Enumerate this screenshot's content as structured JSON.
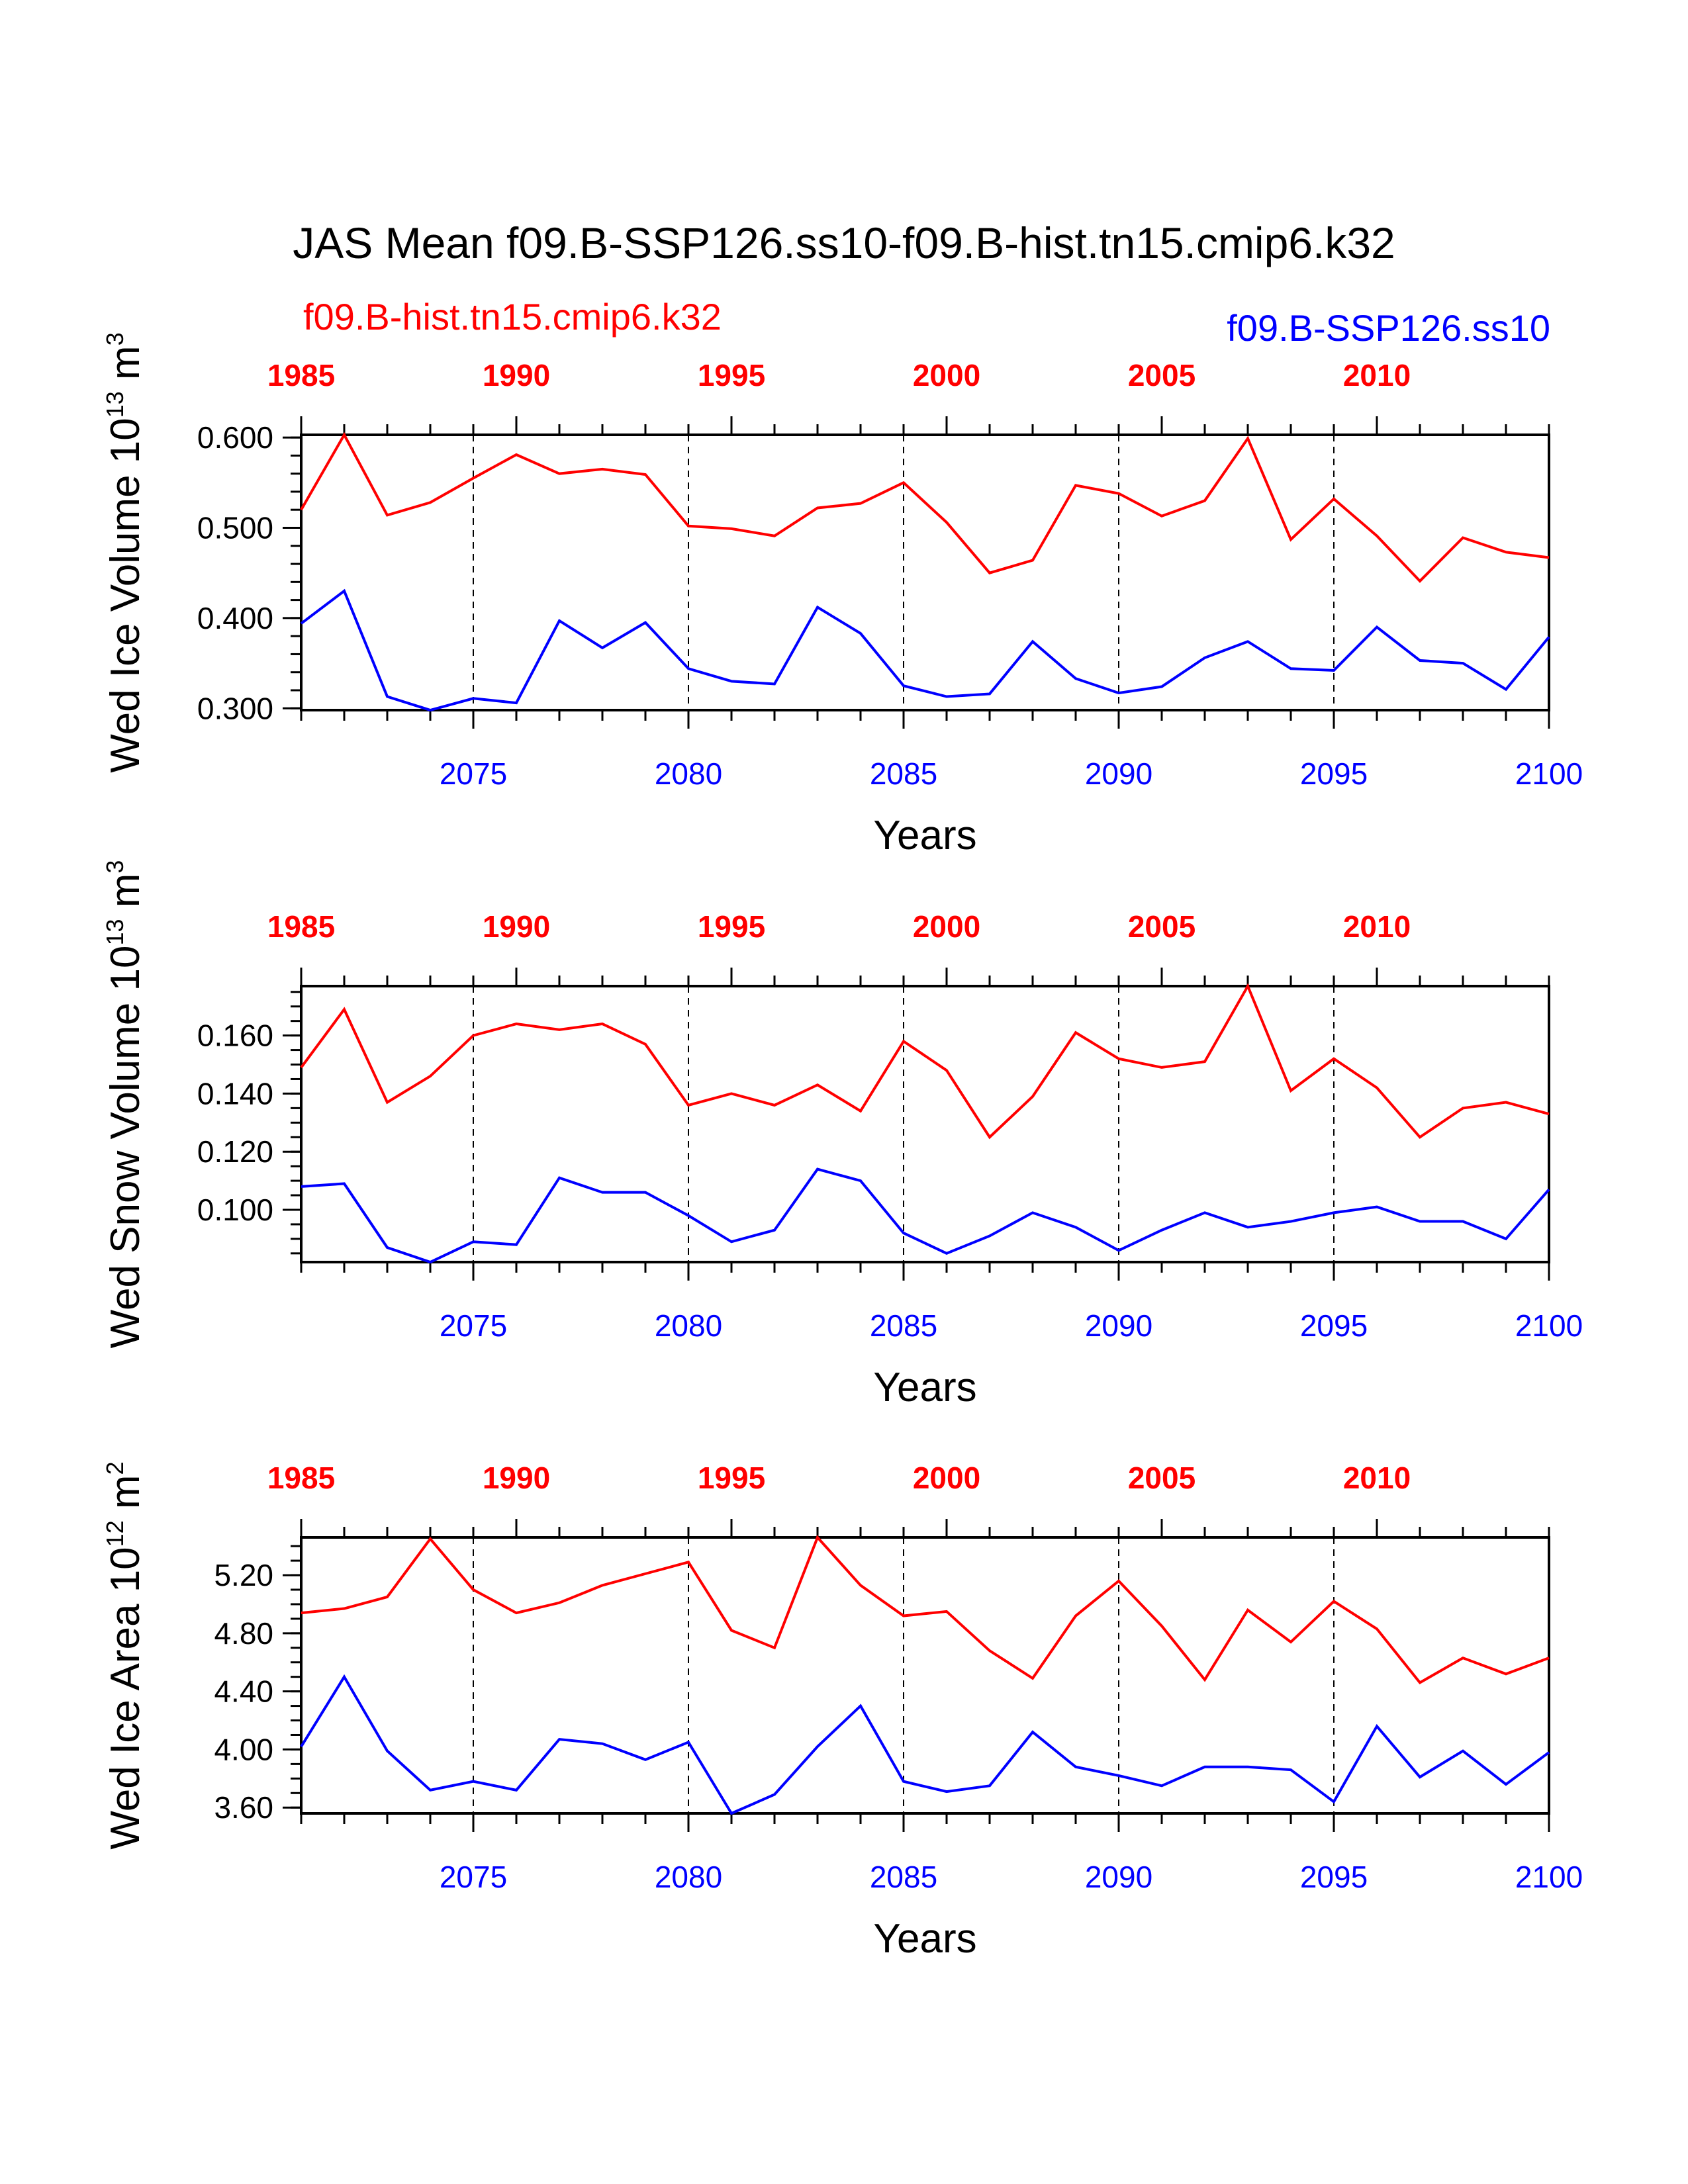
{
  "title": "JAS Mean f09.B-SSP126.ss10-f09.B-hist.tn15.cmip6.k32",
  "legend": {
    "hist": {
      "label": "f09.B-hist.tn15.cmip6.k32",
      "color": "#ff0000"
    },
    "ssp": {
      "label": "f09.B-SSP126.ss10",
      "color": "#0000ff"
    }
  },
  "colors": {
    "hist": "#ff0000",
    "ssp": "#0000ff",
    "axis": "#000000"
  },
  "chart_data": [
    {
      "type": "line",
      "ylabel": {
        "main": "Wed Ice Volume 10",
        "exp": "13",
        "unit": " m",
        "unit_exp": "3"
      },
      "xlabel": "Years",
      "xlim": [
        2071,
        2100
      ],
      "ylim": [
        0.298,
        0.603
      ],
      "yticks": [
        0.3,
        0.4,
        0.5,
        0.6
      ],
      "ytick_labels": [
        "0.300",
        "0.400",
        "0.500",
        "0.600"
      ],
      "yminor": 0.02,
      "x": [
        2071,
        2072,
        2073,
        2074,
        2075,
        2076,
        2077,
        2078,
        2079,
        2080,
        2081,
        2082,
        2083,
        2084,
        2085,
        2086,
        2087,
        2088,
        2089,
        2090,
        2091,
        2092,
        2093,
        2094,
        2095,
        2096,
        2097,
        2098,
        2099,
        2100
      ],
      "series": [
        {
          "name": "f09.B-hist.tn15.cmip6.k32",
          "values": [
            0.52,
            0.603,
            0.514,
            0.528,
            0.555,
            0.581,
            0.56,
            0.565,
            0.559,
            0.502,
            0.499,
            0.491,
            0.522,
            0.527,
            0.55,
            0.506,
            0.45,
            0.464,
            0.547,
            0.538,
            0.513,
            0.53,
            0.599,
            0.487,
            0.532,
            0.491,
            0.441,
            0.489,
            0.473,
            0.467
          ]
        },
        {
          "name": "f09.B-SSP126.ss10",
          "values": [
            0.394,
            0.43,
            0.313,
            0.298,
            0.311,
            0.306,
            0.397,
            0.367,
            0.395,
            0.344,
            0.33,
            0.327,
            0.412,
            0.383,
            0.325,
            0.313,
            0.316,
            0.374,
            0.333,
            0.317,
            0.324,
            0.356,
            0.374,
            0.344,
            0.342,
            0.39,
            0.353,
            0.35,
            0.321,
            0.379
          ]
        }
      ]
    },
    {
      "type": "line",
      "ylabel": {
        "main": "Wed Snow Volume 10",
        "exp": "13",
        "unit": " m",
        "unit_exp": "3"
      },
      "xlabel": "Years",
      "xlim": [
        2071,
        2100
      ],
      "ylim": [
        0.082,
        0.177
      ],
      "yticks": [
        0.1,
        0.12,
        0.14,
        0.16
      ],
      "ytick_labels": [
        "0.100",
        "0.120",
        "0.140",
        "0.160"
      ],
      "yminor": 0.005,
      "x": [
        2071,
        2072,
        2073,
        2074,
        2075,
        2076,
        2077,
        2078,
        2079,
        2080,
        2081,
        2082,
        2083,
        2084,
        2085,
        2086,
        2087,
        2088,
        2089,
        2090,
        2091,
        2092,
        2093,
        2094,
        2095,
        2096,
        2097,
        2098,
        2099,
        2100
      ],
      "series": [
        {
          "name": "f09.B-hist.tn15.cmip6.k32",
          "values": [
            0.149,
            0.169,
            0.137,
            0.146,
            0.16,
            0.164,
            0.162,
            0.164,
            0.157,
            0.136,
            0.14,
            0.136,
            0.143,
            0.134,
            0.158,
            0.148,
            0.125,
            0.139,
            0.161,
            0.152,
            0.149,
            0.151,
            0.177,
            0.141,
            0.152,
            0.142,
            0.125,
            0.135,
            0.137,
            0.133
          ]
        },
        {
          "name": "f09.B-SSP126.ss10",
          "values": [
            0.108,
            0.109,
            0.087,
            0.082,
            0.089,
            0.088,
            0.111,
            0.106,
            0.106,
            0.098,
            0.089,
            0.093,
            0.114,
            0.11,
            0.092,
            0.085,
            0.091,
            0.099,
            0.094,
            0.086,
            0.093,
            0.099,
            0.094,
            0.096,
            0.099,
            0.101,
            0.096,
            0.096,
            0.09,
            0.107
          ]
        }
      ]
    },
    {
      "type": "line",
      "ylabel": {
        "main": "Wed Ice Area 10",
        "exp": "12",
        "unit": " m",
        "unit_exp": "2"
      },
      "xlabel": "Years",
      "xlim": [
        2071,
        2100
      ],
      "ylim": [
        3.56,
        5.46
      ],
      "yticks": [
        3.6,
        4.0,
        4.4,
        4.8,
        5.2
      ],
      "ytick_labels": [
        "3.60",
        "4.00",
        "4.40",
        "4.80",
        "5.20"
      ],
      "yminor": 0.1,
      "x": [
        2071,
        2072,
        2073,
        2074,
        2075,
        2076,
        2077,
        2078,
        2079,
        2080,
        2081,
        2082,
        2083,
        2084,
        2085,
        2086,
        2087,
        2088,
        2089,
        2090,
        2091,
        2092,
        2093,
        2094,
        2095,
        2096,
        2097,
        2098,
        2099,
        2100
      ],
      "series": [
        {
          "name": "f09.B-hist.tn15.cmip6.k32",
          "values": [
            4.94,
            4.97,
            5.05,
            5.45,
            5.1,
            4.94,
            5.01,
            5.13,
            5.21,
            5.29,
            4.82,
            4.7,
            5.46,
            5.13,
            4.92,
            4.95,
            4.68,
            4.49,
            4.92,
            5.16,
            4.85,
            4.48,
            4.96,
            4.74,
            5.02,
            4.83,
            4.46,
            4.63,
            4.52,
            4.63
          ]
        },
        {
          "name": "f09.B-SSP126.ss10",
          "values": [
            4.02,
            4.5,
            3.99,
            3.72,
            3.78,
            3.72,
            4.07,
            4.04,
            3.93,
            4.05,
            3.56,
            3.69,
            4.02,
            4.3,
            3.78,
            3.71,
            3.75,
            4.12,
            3.88,
            3.82,
            3.75,
            3.88,
            3.88,
            3.86,
            3.64,
            4.16,
            3.81,
            3.99,
            3.76,
            3.98
          ]
        }
      ]
    }
  ],
  "top_axis": {
    "ticks": [
      1985,
      1990,
      1995,
      2000,
      2005,
      2010
    ],
    "labels": [
      "1985",
      "1990",
      "1995",
      "2000",
      "2005",
      "2010"
    ],
    "offset_years": 86
  },
  "bottom_axis": {
    "ticks": [
      2075,
      2080,
      2085,
      2090,
      2095,
      2100
    ],
    "labels": [
      "2075",
      "2080",
      "2085",
      "2090",
      "2095",
      "2100"
    ]
  }
}
